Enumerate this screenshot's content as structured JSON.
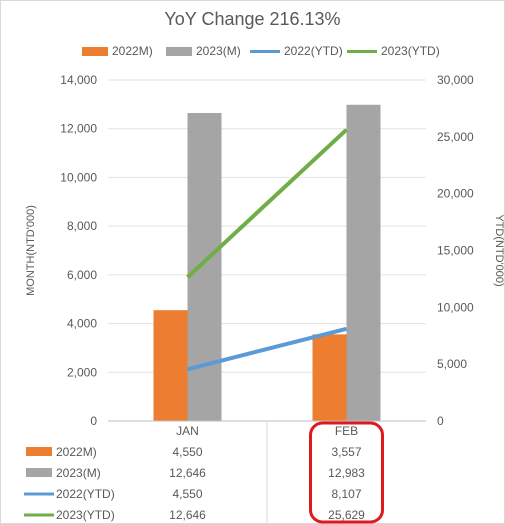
{
  "chart_data": {
    "type": "bar",
    "title": "YoY Change 216.13%",
    "categories": [
      "JAN",
      "FEB"
    ],
    "y_left": {
      "label": "MONTH(NTD'000)",
      "min": 0,
      "max": 14000,
      "step": 2000,
      "ticks": [
        "0",
        "2,000",
        "4,000",
        "6,000",
        "8,000",
        "10,000",
        "12,000",
        "14,000"
      ]
    },
    "y_right": {
      "label": "YTD(NTD'000)",
      "min": 0,
      "max": 30000,
      "step": 5000,
      "ticks": [
        "0",
        "5,000",
        "10,000",
        "15,000",
        "20,000",
        "25,000",
        "30,000"
      ]
    },
    "grid": true,
    "legend_position": "top",
    "series": [
      {
        "name": "2022M)",
        "kind": "bar",
        "axis": "left",
        "color": "#ED7D31",
        "values": [
          4550,
          3557
        ],
        "labels": [
          "4,550",
          "3,557"
        ]
      },
      {
        "name": "2023(M)",
        "kind": "bar",
        "axis": "left",
        "color": "#A5A5A5",
        "values": [
          12646,
          12983
        ],
        "labels": [
          "12,646",
          "12,983"
        ]
      },
      {
        "name": "2022(YTD)",
        "kind": "line",
        "axis": "right",
        "color": "#5B9BD5",
        "values": [
          4550,
          8107
        ],
        "labels": [
          "4,550",
          "8,107"
        ]
      },
      {
        "name": "2023(YTD)",
        "kind": "line",
        "axis": "right",
        "color": "#70AD47",
        "values": [
          12646,
          25629
        ],
        "labels": [
          "12,646",
          "25,629"
        ]
      }
    ],
    "highlight": {
      "category": "FEB",
      "color": "#E0191F"
    }
  }
}
